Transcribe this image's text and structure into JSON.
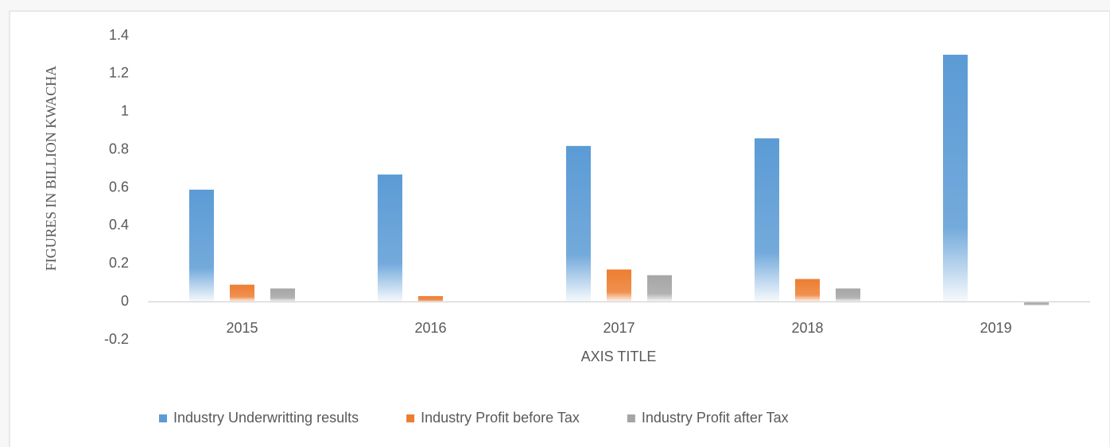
{
  "chart_data": {
    "type": "bar",
    "x_label": "AXIS TITLE",
    "y_label": "FIGURES IN BILLION KWACHA",
    "categories": [
      "2015",
      "2016",
      "2017",
      "2018",
      "2019"
    ],
    "series": [
      {
        "name": "Industry Underwritting results",
        "color": "#5b9bd5",
        "values": [
          0.59,
          0.67,
          0.82,
          0.86,
          1.3
        ]
      },
      {
        "name": "Industry Profit before Tax",
        "color": "#ed7d31",
        "values": [
          0.09,
          0.03,
          0.17,
          0.12,
          0
        ]
      },
      {
        "name": "Industry Profit after Tax",
        "color": "#a5a5a5",
        "values": [
          0.07,
          0,
          0.14,
          0.07,
          -0.02
        ]
      }
    ],
    "ylim": [
      -0.2,
      1.4
    ],
    "yticks": [
      -0.2,
      0,
      0.2,
      0.4,
      0.6,
      0.8,
      1,
      1.2,
      1.4
    ],
    "grid": false,
    "legend": "bottom"
  }
}
